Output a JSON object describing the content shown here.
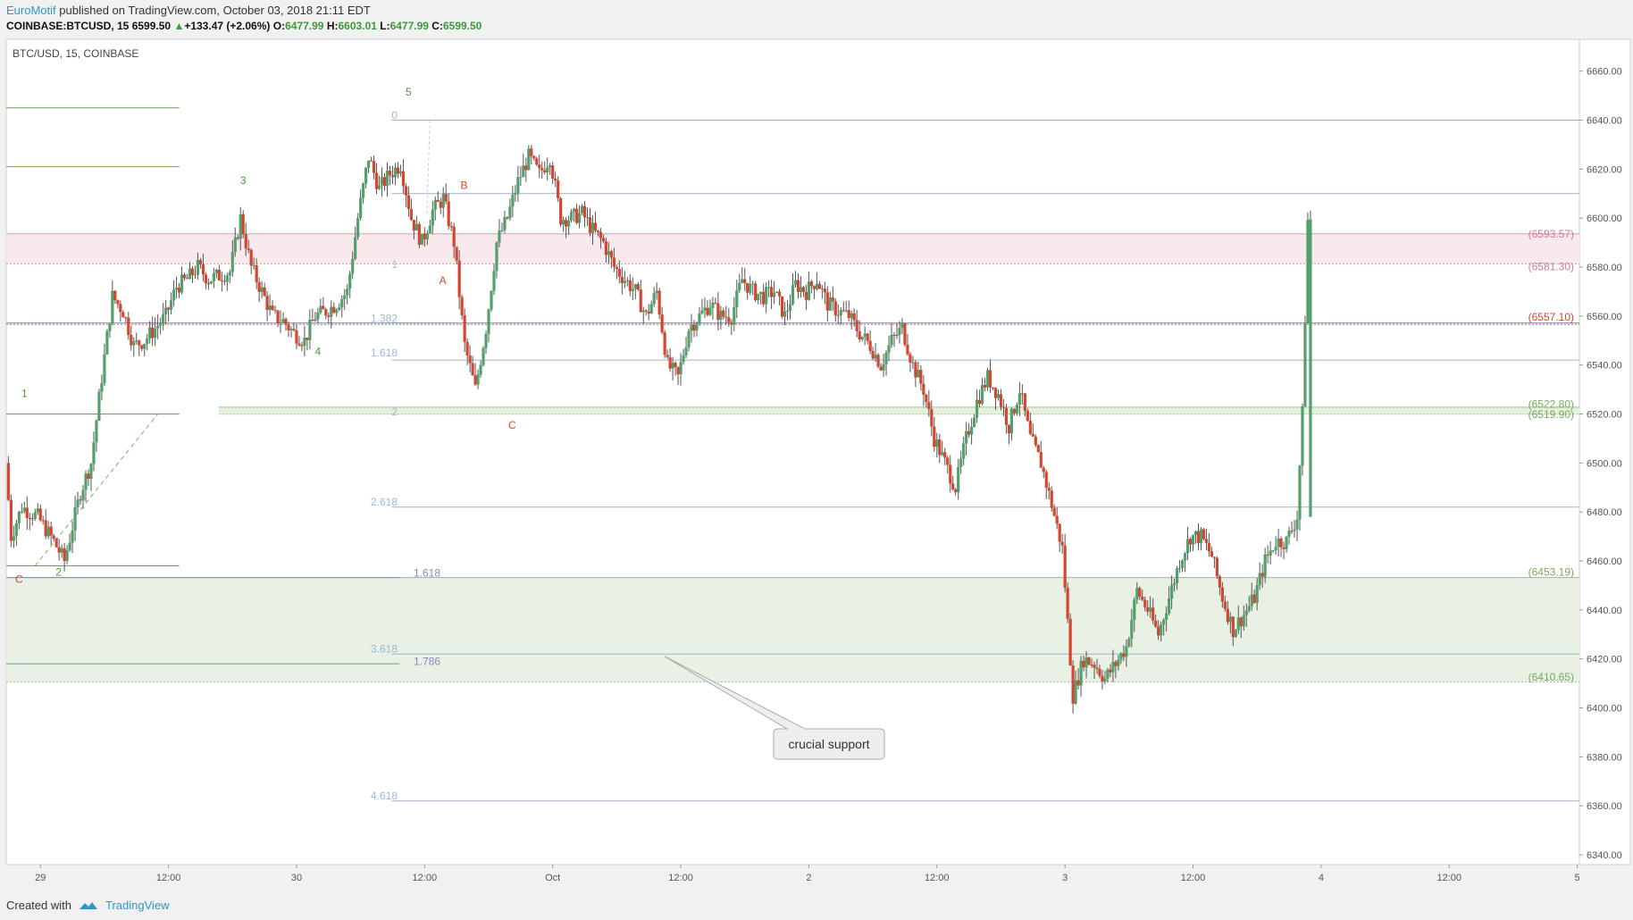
{
  "header": {
    "author": "EuroMotif",
    "published": "published on TradingView.com, October 03, 2018 21:11 EDT",
    "symbol": "COINBASE:BTCUSD, 15",
    "last": "6599.50",
    "change": "+133.47 (+2.06%)",
    "o_label": "O:",
    "o": "6477.99",
    "h_label": "H:",
    "h": "6603.01",
    "l_label": "L:",
    "l": "6477.99",
    "c_label": "C:",
    "c": "6599.50"
  },
  "footer": {
    "created_with": "Created with",
    "brand": "TradingView"
  },
  "colors": {
    "up": "#53a06c",
    "down": "#d4462f",
    "accent": "#2f97c9"
  },
  "chart_data": {
    "type": "candlestick",
    "title": "BTC/USD, 15, COINBASE",
    "ylim": [
      6336,
      6673
    ],
    "y_ticks": [
      6340,
      6360,
      6380,
      6400,
      6420,
      6440,
      6460,
      6480,
      6500,
      6520,
      6540,
      6560,
      6580,
      6600,
      6620,
      6640,
      6660
    ],
    "x_ticks": [
      {
        "label": "29",
        "t": 0
      },
      {
        "label": "12:00",
        "t": 12
      },
      {
        "label": "30",
        "t": 24
      },
      {
        "label": "12:00",
        "t": 36
      },
      {
        "label": "Oct",
        "t": 48
      },
      {
        "label": "12:00",
        "t": 60
      },
      {
        "label": "2",
        "t": 72
      },
      {
        "label": "12:00",
        "t": 84
      },
      {
        "label": "3",
        "t": 96
      },
      {
        "label": "12:00",
        "t": 108
      },
      {
        "label": "4",
        "t": 120
      },
      {
        "label": "12:00",
        "t": 132
      },
      {
        "label": "5",
        "t": 144
      }
    ],
    "x_range_hours": [
      -3.2,
      144.2
    ],
    "price_path": [
      [
        -3,
        6500
      ],
      [
        -2.5,
        6470
      ],
      [
        -1.5,
        6482
      ],
      [
        0,
        6478
      ],
      [
        1.5,
        6468
      ],
      [
        2.5,
        6460
      ],
      [
        4,
        6488
      ],
      [
        5,
        6500
      ],
      [
        6,
        6535
      ],
      [
        7,
        6568
      ],
      [
        8,
        6562
      ],
      [
        9,
        6548
      ],
      [
        10,
        6550
      ],
      [
        11,
        6555
      ],
      [
        12,
        6560
      ],
      [
        13,
        6572
      ],
      [
        14,
        6575
      ],
      [
        15,
        6580
      ],
      [
        16,
        6575
      ],
      [
        18,
        6578
      ],
      [
        19,
        6600
      ],
      [
        20,
        6580
      ],
      [
        21,
        6570
      ],
      [
        22,
        6560
      ],
      [
        23,
        6558
      ],
      [
        24,
        6553
      ],
      [
        25,
        6550
      ],
      [
        26,
        6560
      ],
      [
        27,
        6562
      ],
      [
        28,
        6565
      ],
      [
        29,
        6570
      ],
      [
        30,
        6600
      ],
      [
        31,
        6625
      ],
      [
        32,
        6612
      ],
      [
        33,
        6618
      ],
      [
        34,
        6622
      ],
      [
        35,
        6600
      ],
      [
        36,
        6590
      ],
      [
        37,
        6603
      ],
      [
        38,
        6608
      ],
      [
        39,
        6590
      ],
      [
        40,
        6548
      ],
      [
        41,
        6530
      ],
      [
        42,
        6555
      ],
      [
        43,
        6590
      ],
      [
        44,
        6600
      ],
      [
        45,
        6615
      ],
      [
        46,
        6625
      ],
      [
        47,
        6618
      ],
      [
        48,
        6625
      ],
      [
        49,
        6600
      ],
      [
        50,
        6600
      ],
      [
        51,
        6602
      ],
      [
        52,
        6595
      ],
      [
        53,
        6590
      ],
      [
        54,
        6580
      ],
      [
        55,
        6575
      ],
      [
        56,
        6570
      ],
      [
        57,
        6560
      ],
      [
        58,
        6570
      ],
      [
        59,
        6540
      ],
      [
        60,
        6535
      ],
      [
        61,
        6555
      ],
      [
        62,
        6560
      ],
      [
        63,
        6565
      ],
      [
        64,
        6560
      ],
      [
        65,
        6560
      ],
      [
        66,
        6575
      ],
      [
        67,
        6570
      ],
      [
        68,
        6568
      ],
      [
        69,
        6570
      ],
      [
        70,
        6560
      ],
      [
        71,
        6573
      ],
      [
        72,
        6570
      ],
      [
        73,
        6575
      ],
      [
        74,
        6565
      ],
      [
        75,
        6562
      ],
      [
        76,
        6560
      ],
      [
        77,
        6553
      ],
      [
        78,
        6548
      ],
      [
        79,
        6540
      ],
      [
        80,
        6550
      ],
      [
        81,
        6555
      ],
      [
        82,
        6540
      ],
      [
        83,
        6530
      ],
      [
        84,
        6510
      ],
      [
        85,
        6500
      ],
      [
        86,
        6490
      ],
      [
        87,
        6510
      ],
      [
        88,
        6525
      ],
      [
        89,
        6535
      ],
      [
        90,
        6528
      ],
      [
        91,
        6515
      ],
      [
        92,
        6530
      ],
      [
        93,
        6510
      ],
      [
        94,
        6500
      ],
      [
        95,
        6483
      ],
      [
        96,
        6465
      ],
      [
        97,
        6405
      ],
      [
        98,
        6420
      ],
      [
        99,
        6418
      ],
      [
        100,
        6412
      ],
      [
        101,
        6418
      ],
      [
        102,
        6425
      ],
      [
        103,
        6448
      ],
      [
        104,
        6440
      ],
      [
        105,
        6430
      ],
      [
        106,
        6445
      ],
      [
        107,
        6460
      ],
      [
        108,
        6470
      ],
      [
        109,
        6470
      ],
      [
        110,
        6462
      ],
      [
        111,
        6445
      ],
      [
        112,
        6432
      ],
      [
        113,
        6438
      ],
      [
        114,
        6445
      ],
      [
        115,
        6460
      ],
      [
        116,
        6468
      ],
      [
        117,
        6468
      ],
      [
        118,
        6478
      ],
      [
        118.5,
        6520
      ],
      [
        119,
        6599
      ]
    ],
    "levels": [
      {
        "price": 6640,
        "from": 0.245,
        "to": 1.0,
        "color": "#9fb3c8"
      },
      {
        "price": 6610,
        "from": 0.245,
        "to": 1.0,
        "color": "#9fb3c8"
      },
      {
        "price": 6542,
        "from": 0.245,
        "to": 1.0,
        "color": "#9fb3c8"
      },
      {
        "price": 6482,
        "from": 0.245,
        "to": 1.0,
        "color": "#9fb3c8"
      },
      {
        "price": 6422,
        "from": 0.245,
        "to": 1.0,
        "color": "#9fb3c8"
      },
      {
        "price": 6362,
        "from": 0.245,
        "to": 1.0,
        "color": "#9fb3c8"
      },
      {
        "price": 6557.1,
        "from": 0.0,
        "to": 1.0,
        "color": "#7a6fbf"
      },
      {
        "price": 6453.19,
        "from": 0.0,
        "to": 0.25,
        "color": "#7a8fae"
      },
      {
        "price": 6418,
        "from": 0.0,
        "to": 0.25,
        "color": "#7a8fae"
      },
      {
        "price": 6645,
        "from": 0.0,
        "to": 0.11,
        "color": "#6a9f55"
      },
      {
        "price": 6621,
        "from": 0.0,
        "to": 0.11,
        "color": "#6a9f55"
      },
      {
        "price": 6520,
        "from": 0.0,
        "to": 0.11,
        "color": "#6a9f55"
      },
      {
        "price": 6458,
        "from": 0.0,
        "to": 0.11,
        "color": "#6a9f55"
      }
    ],
    "fib_labels": [
      {
        "text": "0",
        "price": 6642
      },
      {
        "text": "1",
        "price": 6581
      },
      {
        "text": "1.382",
        "price": 6559
      },
      {
        "text": "1.618",
        "price": 6545
      },
      {
        "text": "2",
        "price": 6521
      },
      {
        "text": "2.618",
        "price": 6484
      },
      {
        "text": "3.618",
        "price": 6424
      },
      {
        "text": "4.618",
        "price": 6364
      }
    ],
    "fib_labels_2": [
      {
        "text": "1.618",
        "price": 6455
      },
      {
        "text": "1.786",
        "price": 6419
      }
    ],
    "zones": [
      {
        "top": 6593.57,
        "bottom": 6581.3,
        "fill": "#f9e9ec",
        "line": "#c8a4ae"
      },
      {
        "top": 6522.8,
        "bottom": 6519.9,
        "fill": "#e4f0dd",
        "line": "#9fc48c",
        "from": 0.135
      },
      {
        "top": 6453.19,
        "bottom": 6410.65,
        "fill": "#e9f1e4",
        "line": "#9fb5a3"
      }
    ],
    "price_labels": [
      {
        "text": "(6593.57)",
        "price": 6593.57,
        "color": "#d07a8d"
      },
      {
        "text": "(6581.30)",
        "price": 6580.2,
        "color": "#d07a8d"
      },
      {
        "text": "(6557.10)",
        "price": 6559.6,
        "color": "#d4462f"
      },
      {
        "text": "(6522.80)",
        "price": 6524.0,
        "color": "#7aa95a"
      },
      {
        "text": "(6519.90)",
        "price": 6519.9,
        "color": "#7aa95a"
      },
      {
        "text": "(6453.19)",
        "price": 6455.5,
        "color": "#7aa95a"
      },
      {
        "text": "(6410.65)",
        "price": 6412.6,
        "color": "#7aa95a"
      }
    ],
    "wave_labels": [
      {
        "text": "1",
        "t": -1.5,
        "price": 6527,
        "color": "#4c9a3a"
      },
      {
        "text": "2",
        "t": 1.7,
        "price": 6454,
        "color": "#4c9a3a"
      },
      {
        "text": "3",
        "t": 19,
        "price": 6614,
        "color": "#4c9a3a"
      },
      {
        "text": "4",
        "t": 26,
        "price": 6544,
        "color": "#4c9a3a"
      },
      {
        "text": "5",
        "t": 34.5,
        "price": 6650,
        "color": "#4c9a3a"
      },
      {
        "text": "C",
        "t": -2,
        "price": 6451,
        "color": "#d4462f"
      },
      {
        "text": "A",
        "t": 37.7,
        "price": 6573,
        "color": "#d4462f"
      },
      {
        "text": "B",
        "t": 39.7,
        "price": 6612,
        "color": "#d4462f"
      },
      {
        "text": "C",
        "t": 44.2,
        "price": 6514,
        "color": "#d4462f"
      }
    ],
    "annotation": {
      "text": "crucial support"
    }
  }
}
